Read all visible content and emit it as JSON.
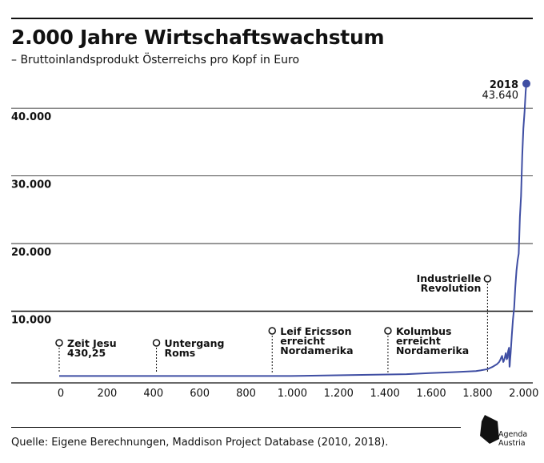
{
  "header": {
    "title": "2.000 Jahre Wirtschaftswachstum",
    "subtitle": "– Bruttoinlandsprodukt Österreichs pro Kopf in Euro"
  },
  "footer": {
    "source": "Quelle: Eigene Berechnungen, Maddison Project Database (2010, 2018)."
  },
  "logo": {
    "line1": "Agenda",
    "line2": "Austria"
  },
  "colors": {
    "line": "#3f4ea3",
    "text": "#111111",
    "grid": "#111111"
  },
  "chart_data": {
    "type": "line",
    "title": "2.000 Jahre Wirtschaftswachstum",
    "subtitle": "– Bruttoinlandsprodukt Österreichs pro Kopf in Euro",
    "xlabel": "",
    "ylabel": "",
    "xlim": [
      0,
      2018
    ],
    "ylim": [
      0,
      44000
    ],
    "grid": true,
    "x_ticks": [
      0,
      200,
      400,
      600,
      800,
      1000,
      1200,
      1400,
      1600,
      1800,
      2000
    ],
    "x_tick_labels": [
      "0",
      "200",
      "400",
      "600",
      "800",
      "1.000",
      "1.200",
      "1.400",
      "1.600",
      "1.800",
      "2.000"
    ],
    "y_ticks": [
      10000,
      20000,
      30000,
      40000
    ],
    "y_tick_labels": [
      "10.000",
      "20.000",
      "30.000",
      "40.000"
    ],
    "series": [
      {
        "x": [
          0,
          1000,
          1500,
          1600,
          1700,
          1800,
          1820,
          1850,
          1870,
          1890,
          1900,
          1905,
          1910,
          1913,
          1915,
          1918,
          1920,
          1925,
          1929,
          1930,
          1933,
          1936,
          1938,
          1940,
          1943,
          1945,
          1946,
          1947,
          1950,
          1955,
          1960,
          1965,
          1970,
          1975,
          1980,
          1985,
          1990,
          1995,
          2000,
          2005,
          2010,
          2015,
          2018
        ],
        "y": [
          430.25,
          430,
          700,
          850,
          1000,
          1150,
          1250,
          1450,
          1750,
          2150,
          2500,
          2800,
          3200,
          3400,
          3000,
          2500,
          2600,
          3200,
          3800,
          3600,
          2900,
          3100,
          3900,
          4200,
          4600,
          1800,
          2000,
          2600,
          3800,
          6500,
          8800,
          10500,
          13500,
          16000,
          17500,
          18500,
          24000,
          27000,
          33000,
          37000,
          39500,
          42500,
          43640
        ]
      }
    ],
    "annotations": [
      {
        "x": 0,
        "label": "Zeit Jesu",
        "value_label": "430,25"
      },
      {
        "x": 420,
        "label": "Untergang Roms"
      },
      {
        "x": 920,
        "label": "Leif Ericsson erreicht Nordamerika"
      },
      {
        "x": 1420,
        "label": "Kolumbus erreicht Nordamerika"
      },
      {
        "x": 1850,
        "label": "Industrielle Revolution"
      }
    ],
    "end_label": {
      "year": "2018",
      "value": "43.640"
    }
  }
}
